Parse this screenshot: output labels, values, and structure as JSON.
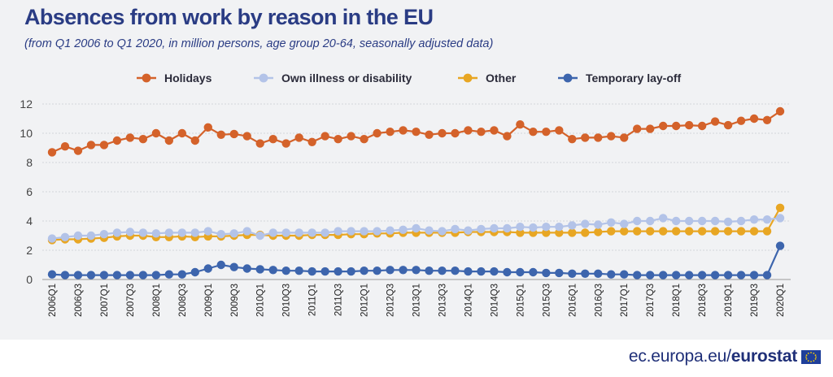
{
  "header": {
    "title": "Absences from work by reason in the EU",
    "subtitle": "(from Q1 2006 to Q1 2020, in million persons, age group 20-64, seasonally adjusted data)"
  },
  "footer": {
    "domain": "ec.europa.eu/",
    "brand": "eurostat",
    "flag_icon": "eu-flag-icon"
  },
  "chart_data": {
    "type": "line",
    "x": [
      "2006Q1",
      "2006Q2",
      "2006Q3",
      "2006Q4",
      "2007Q1",
      "2007Q2",
      "2007Q3",
      "2007Q4",
      "2008Q1",
      "2008Q2",
      "2008Q3",
      "2008Q4",
      "2009Q1",
      "2009Q2",
      "2009Q3",
      "2009Q4",
      "2010Q1",
      "2010Q2",
      "2010Q3",
      "2010Q4",
      "2011Q1",
      "2011Q2",
      "2011Q3",
      "2011Q4",
      "2012Q1",
      "2012Q2",
      "2012Q3",
      "2012Q4",
      "2013Q1",
      "2013Q2",
      "2013Q3",
      "2013Q4",
      "2014Q1",
      "2014Q2",
      "2014Q3",
      "2014Q4",
      "2015Q1",
      "2015Q2",
      "2015Q3",
      "2015Q4",
      "2016Q1",
      "2016Q2",
      "2016Q3",
      "2016Q4",
      "2017Q1",
      "2017Q2",
      "2017Q3",
      "2017Q4",
      "2018Q1",
      "2018Q2",
      "2018Q3",
      "2018Q4",
      "2019Q1",
      "2019Q2",
      "2019Q3",
      "2019Q4",
      "2020Q1"
    ],
    "x_tick_labels": [
      "2006Q1",
      "2006Q3",
      "2007Q1",
      "2007Q3",
      "2008Q1",
      "2008Q3",
      "2009Q1",
      "2009Q3",
      "2010Q1",
      "2010Q3",
      "2011Q1",
      "2011Q3",
      "2012Q1",
      "2012Q3",
      "2013Q1",
      "2013Q3",
      "2014Q1",
      "2014Q3",
      "2015Q1",
      "2015Q3",
      "2016Q1",
      "2016Q3",
      "2017Q1",
      "2017Q3",
      "2018Q1",
      "2018Q3",
      "2019Q1",
      "2019Q3",
      "2020Q1"
    ],
    "ylim": [
      0,
      12
    ],
    "y_ticks": [
      0,
      2,
      4,
      6,
      8,
      10,
      12
    ],
    "grid": true,
    "legend_position": "top",
    "series": [
      {
        "name": "Holidays",
        "color": "#d4622a",
        "values": [
          8.7,
          9.1,
          8.8,
          9.2,
          9.2,
          9.5,
          9.7,
          9.6,
          10.0,
          9.5,
          10.0,
          9.5,
          10.4,
          9.9,
          9.95,
          9.8,
          9.3,
          9.6,
          9.3,
          9.7,
          9.4,
          9.8,
          9.6,
          9.8,
          9.6,
          10.0,
          10.1,
          10.2,
          10.1,
          9.9,
          10.0,
          10.0,
          10.2,
          10.1,
          10.2,
          9.8,
          10.6,
          10.1,
          10.1,
          10.2,
          9.6,
          9.7,
          9.7,
          9.8,
          9.7,
          10.3,
          10.3,
          10.5,
          10.5,
          10.55,
          10.5,
          10.8,
          10.55,
          10.85,
          11.0,
          10.9,
          11.5
        ]
      },
      {
        "name": "Own illness or disability",
        "color": "#b3c3e8",
        "values": [
          2.8,
          2.9,
          3.0,
          3.0,
          3.1,
          3.2,
          3.25,
          3.2,
          3.15,
          3.2,
          3.2,
          3.2,
          3.3,
          3.1,
          3.15,
          3.3,
          3.0,
          3.2,
          3.2,
          3.2,
          3.2,
          3.2,
          3.3,
          3.3,
          3.3,
          3.3,
          3.35,
          3.4,
          3.5,
          3.35,
          3.3,
          3.45,
          3.35,
          3.45,
          3.5,
          3.5,
          3.6,
          3.55,
          3.6,
          3.6,
          3.7,
          3.8,
          3.75,
          3.9,
          3.8,
          4.0,
          4.0,
          4.2,
          4.0,
          4.0,
          4.0,
          4.0,
          3.95,
          4.0,
          4.1,
          4.1,
          4.2
        ]
      },
      {
        "name": "Other",
        "color": "#e8a623",
        "values": [
          2.7,
          2.75,
          2.75,
          2.8,
          2.85,
          2.95,
          3.0,
          3.0,
          2.9,
          2.9,
          2.95,
          2.9,
          2.95,
          2.95,
          3.0,
          3.05,
          3.05,
          3.0,
          3.0,
          3.0,
          3.05,
          3.05,
          3.05,
          3.1,
          3.1,
          3.15,
          3.15,
          3.2,
          3.2,
          3.2,
          3.2,
          3.2,
          3.25,
          3.25,
          3.25,
          3.25,
          3.2,
          3.2,
          3.2,
          3.2,
          3.2,
          3.2,
          3.25,
          3.3,
          3.3,
          3.3,
          3.3,
          3.3,
          3.3,
          3.3,
          3.3,
          3.3,
          3.3,
          3.3,
          3.3,
          3.3,
          4.9
        ]
      },
      {
        "name": "Temporary lay-off",
        "color": "#3d65ad",
        "values": [
          0.35,
          0.3,
          0.3,
          0.3,
          0.3,
          0.3,
          0.3,
          0.3,
          0.3,
          0.35,
          0.35,
          0.5,
          0.75,
          1.0,
          0.85,
          0.75,
          0.7,
          0.65,
          0.6,
          0.6,
          0.55,
          0.55,
          0.55,
          0.55,
          0.6,
          0.6,
          0.65,
          0.65,
          0.65,
          0.6,
          0.6,
          0.6,
          0.55,
          0.55,
          0.55,
          0.5,
          0.5,
          0.5,
          0.45,
          0.45,
          0.4,
          0.4,
          0.4,
          0.35,
          0.35,
          0.3,
          0.3,
          0.3,
          0.3,
          0.3,
          0.3,
          0.3,
          0.3,
          0.3,
          0.3,
          0.3,
          2.3
        ]
      }
    ]
  }
}
